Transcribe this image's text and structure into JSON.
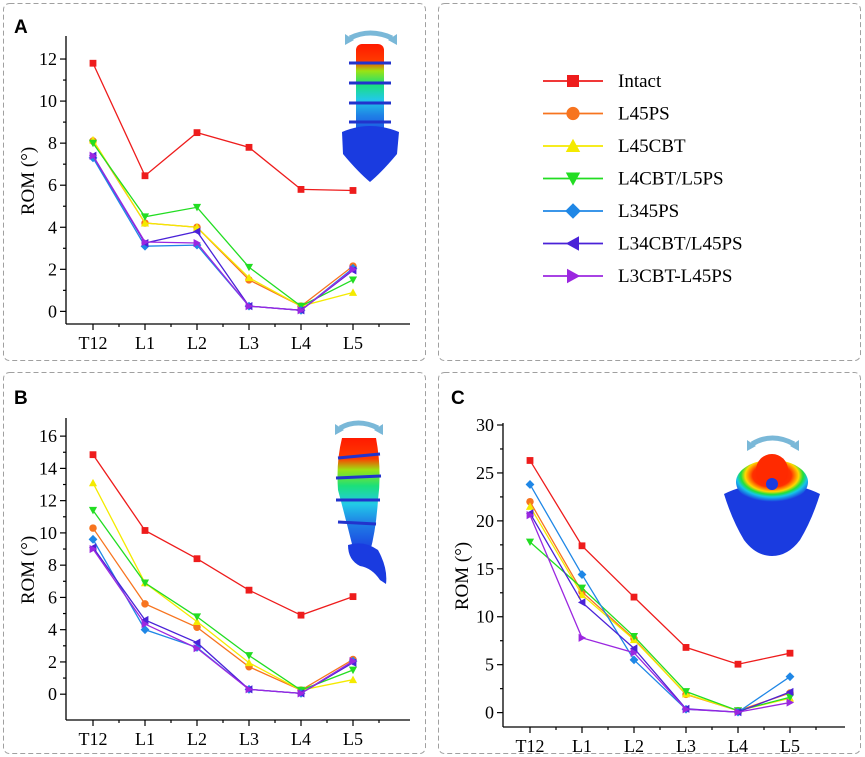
{
  "colors": {
    "Intact": "#ee1c1c",
    "L45PS": "#f7741f",
    "L45CBT": "#f4ea00",
    "L4CBT/L5PS": "#22dd22",
    "L345PS": "#1f87e6",
    "L34CBT/L45PS": "#4a22d8",
    "L3CBT-L45PS": "#9b27e0"
  },
  "legend": {
    "entries": [
      {
        "name": "Intact",
        "marker": "square"
      },
      {
        "name": "L45PS",
        "marker": "circle"
      },
      {
        "name": "L45CBT",
        "marker": "triangle-up"
      },
      {
        "name": "L4CBT/L5PS",
        "marker": "triangle-down"
      },
      {
        "name": "L345PS",
        "marker": "diamond"
      },
      {
        "name": "L34CBT/L45PS",
        "marker": "triangle-left"
      },
      {
        "name": "L3CBT-L45PS",
        "marker": "triangle-right"
      }
    ]
  },
  "chart_data": [
    {
      "panel": "A",
      "type": "line",
      "ylabel": "ROM (°)",
      "xlabel": "",
      "categories": [
        "T12",
        "L1",
        "L2",
        "L3",
        "L4",
        "L5"
      ],
      "yticks": [
        0,
        2,
        4,
        6,
        8,
        10,
        12
      ],
      "ylim": [
        -0.6,
        13.0
      ],
      "series": [
        {
          "name": "Intact",
          "values": [
            11.8,
            6.45,
            8.5,
            7.8,
            5.8,
            5.75
          ]
        },
        {
          "name": "L45PS",
          "values": [
            8.1,
            4.2,
            4.0,
            1.5,
            0.25,
            2.15
          ]
        },
        {
          "name": "L45CBT",
          "values": [
            8.15,
            4.2,
            4.0,
            1.6,
            0.25,
            0.9
          ]
        },
        {
          "name": "L4CBT/L5PS",
          "values": [
            8.0,
            4.5,
            4.95,
            2.1,
            0.25,
            1.5
          ]
        },
        {
          "name": "L345PS",
          "values": [
            7.3,
            3.1,
            3.15,
            0.25,
            0.05,
            2.05
          ]
        },
        {
          "name": "L34CBT/L45PS",
          "values": [
            7.4,
            3.25,
            3.8,
            0.25,
            0.05,
            1.95
          ]
        },
        {
          "name": "L3CBT-L45PS",
          "values": [
            7.4,
            3.3,
            3.25,
            0.25,
            0.05,
            2.0
          ]
        }
      ]
    },
    {
      "panel": "B",
      "type": "line",
      "ylabel": "ROM (°)",
      "xlabel": "",
      "categories": [
        "T12",
        "L1",
        "L2",
        "L3",
        "L4",
        "L5"
      ],
      "yticks": [
        0,
        2,
        4,
        6,
        8,
        10,
        12,
        14,
        16
      ],
      "ylim": [
        -1.6,
        17.0
      ],
      "series": [
        {
          "name": "Intact",
          "values": [
            14.85,
            10.15,
            8.4,
            6.45,
            4.9,
            6.05
          ]
        },
        {
          "name": "L45PS",
          "values": [
            10.3,
            5.6,
            4.15,
            1.7,
            0.25,
            2.15
          ]
        },
        {
          "name": "L45CBT",
          "values": [
            13.1,
            6.9,
            4.5,
            1.95,
            0.25,
            0.9
          ]
        },
        {
          "name": "L4CBT/L5PS",
          "values": [
            11.4,
            6.9,
            4.8,
            2.4,
            0.25,
            1.5
          ]
        },
        {
          "name": "L345PS",
          "values": [
            9.6,
            4.0,
            2.9,
            0.3,
            0.05,
            2.05
          ]
        },
        {
          "name": "L34CBT/L45PS",
          "values": [
            9.1,
            4.6,
            3.2,
            0.3,
            0.05,
            1.95
          ]
        },
        {
          "name": "L3CBT-L45PS",
          "values": [
            9.0,
            4.35,
            2.85,
            0.3,
            0.05,
            2.05
          ]
        }
      ]
    },
    {
      "panel": "C",
      "type": "line",
      "ylabel": "ROM (°)",
      "xlabel": "",
      "categories": [
        "T12",
        "L1",
        "L2",
        "L3",
        "L4",
        "L5"
      ],
      "yticks": [
        0,
        5,
        10,
        15,
        20,
        25,
        30
      ],
      "ylim": [
        -1.5,
        30.0
      ],
      "series": [
        {
          "name": "Intact",
          "values": [
            26.3,
            17.4,
            12.05,
            6.8,
            5.05,
            6.2
          ]
        },
        {
          "name": "L45PS",
          "values": [
            22.0,
            12.6,
            7.7,
            1.9,
            0.2,
            2.05
          ]
        },
        {
          "name": "L45CBT",
          "values": [
            21.5,
            12.3,
            7.6,
            1.95,
            0.2,
            1.5
          ]
        },
        {
          "name": "L4CBT/L5PS",
          "values": [
            17.8,
            13.0,
            7.95,
            2.2,
            0.2,
            1.6
          ]
        },
        {
          "name": "L345PS",
          "values": [
            23.8,
            14.4,
            5.5,
            0.35,
            0.05,
            3.75
          ]
        },
        {
          "name": "L34CBT/L45PS",
          "values": [
            20.8,
            11.5,
            6.7,
            0.4,
            0.05,
            2.15
          ]
        },
        {
          "name": "L3CBT-L45PS",
          "values": [
            20.6,
            7.8,
            6.25,
            0.35,
            0.05,
            1.05
          ]
        }
      ]
    }
  ]
}
